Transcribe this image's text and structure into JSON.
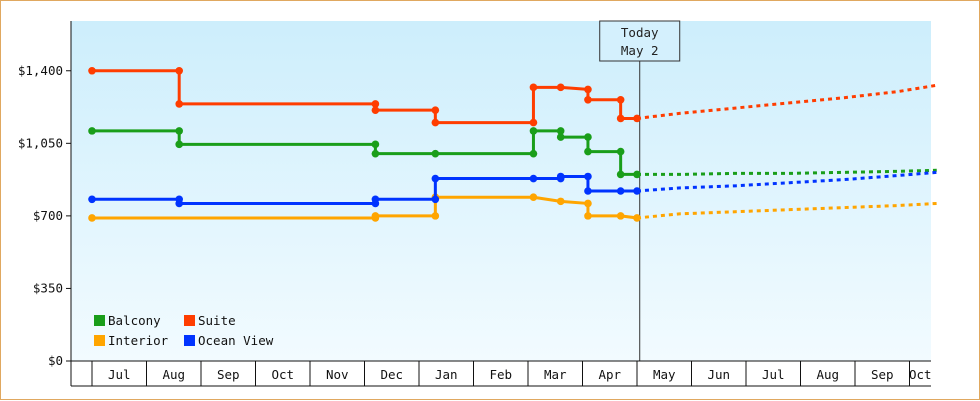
{
  "chart_data": {
    "type": "line",
    "title": "",
    "xlabel": "",
    "ylabel": "",
    "ylim": [
      0,
      1640
    ],
    "y_ticks": [
      0,
      350,
      700,
      1050,
      1400
    ],
    "y_tick_labels": [
      "$0",
      "$350",
      "$700",
      "$1,050",
      "$1,400"
    ],
    "x_tick_labels": [
      "Jul",
      "Aug",
      "Sep",
      "Oct",
      "Nov",
      "Dec",
      "Jan",
      "Feb",
      "Mar",
      "Apr",
      "May",
      "Jun",
      "Jul",
      "Aug",
      "Sep",
      "Oct"
    ],
    "grid": false,
    "legend_position": "bottom-left",
    "today_marker": {
      "line1": "Today",
      "line2": "May 2",
      "x": 10.05
    },
    "series": [
      {
        "name": "Balcony",
        "color": "#1a9e1a",
        "points": [
          [
            0,
            1110
          ],
          [
            1.6,
            1110
          ],
          [
            1.6,
            1045
          ],
          [
            5.2,
            1045
          ],
          [
            5.2,
            1000
          ],
          [
            6.3,
            1000
          ],
          [
            8.1,
            1000
          ],
          [
            8.1,
            1110
          ],
          [
            8.6,
            1110
          ],
          [
            8.6,
            1080
          ],
          [
            9.1,
            1080
          ],
          [
            9.1,
            1010
          ],
          [
            9.7,
            1010
          ],
          [
            9.7,
            900
          ],
          [
            10.0,
            900
          ]
        ],
        "forecast": [
          [
            10.0,
            900
          ],
          [
            10.8,
            900
          ],
          [
            11.8,
            905
          ],
          [
            12.8,
            905
          ],
          [
            13.8,
            910
          ],
          [
            14.8,
            915
          ],
          [
            15.5,
            920
          ]
        ]
      },
      {
        "name": "Suite",
        "color": "#ff3d00",
        "points": [
          [
            0,
            1400
          ],
          [
            1.6,
            1400
          ],
          [
            1.6,
            1240
          ],
          [
            5.2,
            1240
          ],
          [
            5.2,
            1210
          ],
          [
            6.3,
            1210
          ],
          [
            6.3,
            1150
          ],
          [
            8.1,
            1150
          ],
          [
            8.1,
            1320
          ],
          [
            8.6,
            1320
          ],
          [
            9.1,
            1310
          ],
          [
            9.1,
            1260
          ],
          [
            9.7,
            1260
          ],
          [
            9.7,
            1170
          ],
          [
            10.0,
            1170
          ]
        ],
        "forecast": [
          [
            10.0,
            1170
          ],
          [
            10.8,
            1195
          ],
          [
            11.8,
            1220
          ],
          [
            12.8,
            1245
          ],
          [
            13.8,
            1270
          ],
          [
            14.8,
            1300
          ],
          [
            15.5,
            1330
          ]
        ]
      },
      {
        "name": "Interior",
        "color": "#ffa500",
        "points": [
          [
            0,
            690
          ],
          [
            5.2,
            690
          ],
          [
            5.2,
            700
          ],
          [
            6.3,
            700
          ],
          [
            6.3,
            790
          ],
          [
            8.1,
            790
          ],
          [
            8.6,
            770
          ],
          [
            9.1,
            760
          ],
          [
            9.1,
            700
          ],
          [
            9.7,
            700
          ],
          [
            10.0,
            690
          ]
        ],
        "forecast": [
          [
            10.0,
            690
          ],
          [
            10.8,
            710
          ],
          [
            11.8,
            720
          ],
          [
            12.8,
            730
          ],
          [
            13.8,
            740
          ],
          [
            14.8,
            750
          ],
          [
            15.5,
            760
          ]
        ]
      },
      {
        "name": "Ocean View",
        "color": "#0033ff",
        "points": [
          [
            0,
            780
          ],
          [
            1.6,
            780
          ],
          [
            1.6,
            760
          ],
          [
            5.2,
            760
          ],
          [
            5.2,
            780
          ],
          [
            6.3,
            780
          ],
          [
            6.3,
            880
          ],
          [
            8.1,
            880
          ],
          [
            8.6,
            880
          ],
          [
            8.6,
            890
          ],
          [
            9.1,
            890
          ],
          [
            9.1,
            820
          ],
          [
            9.7,
            820
          ],
          [
            10.0,
            820
          ]
        ],
        "forecast": [
          [
            10.0,
            820
          ],
          [
            10.8,
            835
          ],
          [
            11.8,
            845
          ],
          [
            12.8,
            860
          ],
          [
            13.8,
            875
          ],
          [
            14.8,
            895
          ],
          [
            15.5,
            910
          ]
        ]
      }
    ]
  },
  "legend": {
    "items": [
      {
        "name": "Balcony",
        "color": "#1a9e1a"
      },
      {
        "name": "Suite",
        "color": "#ff3d00"
      },
      {
        "name": "Interior",
        "color": "#ffa500"
      },
      {
        "name": "Ocean View",
        "color": "#0033ff"
      }
    ]
  }
}
